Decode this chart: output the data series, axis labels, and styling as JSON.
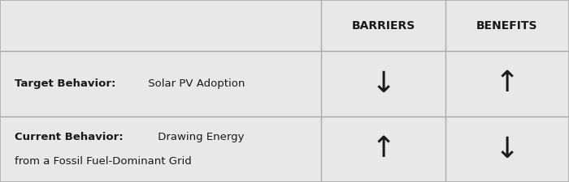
{
  "fig_width": 7.0,
  "fig_height": 2.25,
  "dpi": 100,
  "bg_color": "#e8e8e8",
  "line_color": "#aaaaaa",
  "text_color": "#1a1a1a",
  "header_label_barriers": "BARRIERS",
  "header_label_benefits": "BENEFITS",
  "row1_bold": "Target Behavior:",
  "row1_normal": " Solar PV Adoption",
  "row2_bold": "Current Behavior:",
  "row2_line1_normal": " Drawing Energy",
  "row2_line2_normal": "from a Fossil Fuel-Dominant Grid",
  "arrow_down": "↓",
  "arrow_up": "↑",
  "header_fontsize": 10,
  "body_fontsize": 9.5,
  "arrow_fontsize": 26,
  "col_split1": 0.565,
  "col_split2": 0.7825,
  "row_split1": 0.72,
  "row_split2": 0.36
}
